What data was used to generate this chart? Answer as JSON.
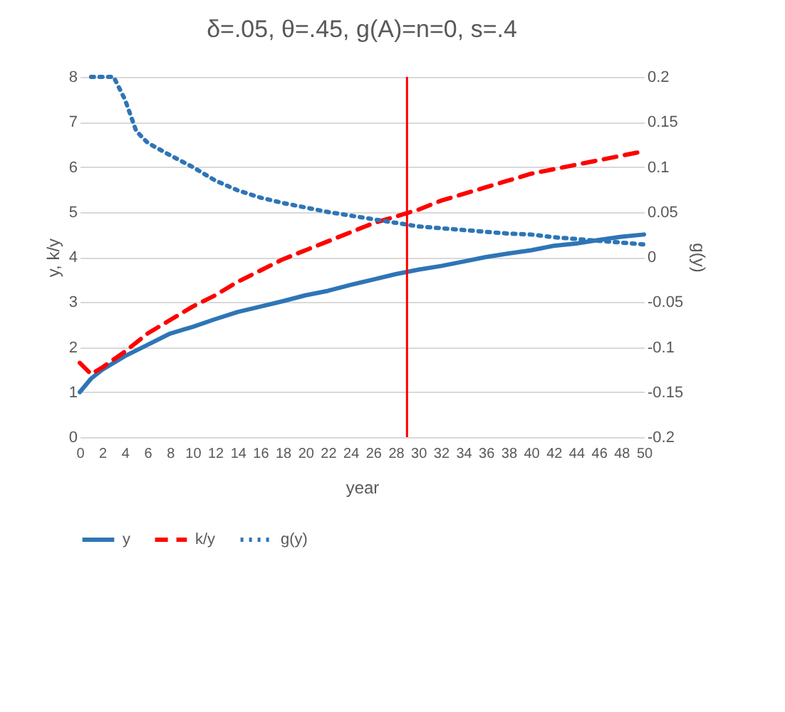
{
  "chart_data": {
    "type": "line",
    "title": "δ=.05, θ=.45, g(A)=n=0, s=.4",
    "xlabel": "year",
    "ylabel": "y, k/y",
    "y2label": "g(y)",
    "xlim": [
      0,
      50
    ],
    "xticks": [
      0,
      2,
      4,
      6,
      8,
      10,
      12,
      14,
      16,
      18,
      20,
      22,
      24,
      26,
      28,
      30,
      32,
      34,
      36,
      38,
      40,
      42,
      44,
      46,
      48,
      50
    ],
    "ylim": [
      0,
      8
    ],
    "yticks": [
      0,
      1,
      2,
      3,
      4,
      5,
      6,
      7,
      8
    ],
    "y2lim": [
      -0.2,
      0.2
    ],
    "y2ticks": [
      -0.2,
      -0.15,
      -0.1,
      -0.05,
      0,
      0.05,
      0.1,
      0.15,
      0.2
    ],
    "grid": "y",
    "legend": "bottom",
    "marker": "none",
    "ref_lines": [
      {
        "axis": "x",
        "value": 29,
        "color": "#ff0000"
      }
    ],
    "series": [
      {
        "name": "y",
        "color": "#2e75b6",
        "line_style": "solid",
        "x": [
          0,
          1,
          2,
          4,
          6,
          8,
          10,
          12,
          14,
          16,
          18,
          20,
          22,
          24,
          26,
          28,
          30,
          32,
          34,
          36,
          38,
          40,
          42,
          44,
          46,
          48,
          50
        ],
        "values": [
          1.0,
          1.3,
          1.5,
          1.8,
          2.05,
          2.3,
          2.45,
          2.62,
          2.78,
          2.9,
          3.02,
          3.15,
          3.25,
          3.38,
          3.5,
          3.62,
          3.72,
          3.8,
          3.9,
          4.0,
          4.08,
          4.15,
          4.25,
          4.3,
          4.38,
          4.45,
          4.5
        ]
      },
      {
        "name": "k/y",
        "color": "#ff0000",
        "line_style": "dashed",
        "x": [
          0,
          1,
          2,
          4,
          6,
          8,
          10,
          12,
          14,
          16,
          18,
          20,
          22,
          24,
          26,
          28,
          30,
          32,
          34,
          36,
          38,
          40,
          42,
          44,
          46,
          48,
          50
        ],
        "values": [
          1.65,
          1.4,
          1.55,
          1.9,
          2.3,
          2.6,
          2.9,
          3.15,
          3.45,
          3.7,
          3.95,
          4.15,
          4.35,
          4.55,
          4.75,
          4.9,
          5.05,
          5.25,
          5.4,
          5.55,
          5.7,
          5.85,
          5.95,
          6.05,
          6.15,
          6.25,
          6.35
        ]
      },
      {
        "name": "g(y)",
        "color": "#2e75b6",
        "line_style": "dotted",
        "axis": "y2",
        "x": [
          1,
          3,
          4,
          5,
          6,
          8,
          10,
          12,
          14,
          16,
          18,
          20,
          22,
          24,
          26,
          28,
          30,
          32,
          34,
          36,
          38,
          40,
          42,
          44,
          46,
          48,
          50
        ],
        "values": [
          0.2,
          0.2,
          0.175,
          0.14,
          0.127,
          0.113,
          0.1,
          0.085,
          0.074,
          0.066,
          0.06,
          0.055,
          0.05,
          0.046,
          0.042,
          0.038,
          0.034,
          0.032,
          0.03,
          0.028,
          0.026,
          0.025,
          0.022,
          0.02,
          0.018,
          0.016,
          0.014
        ]
      }
    ]
  }
}
